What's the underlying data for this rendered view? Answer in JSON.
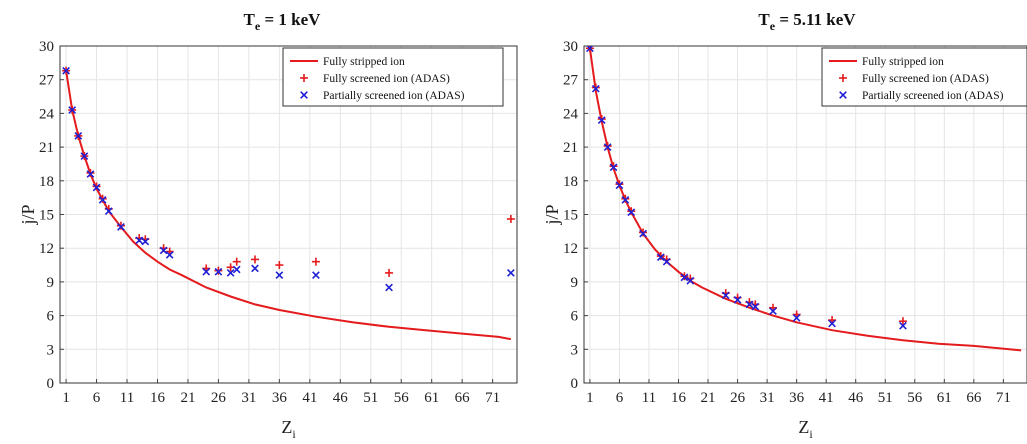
{
  "chart_data": [
    {
      "type": "scatter",
      "title": {
        "main": "T",
        "sub": "e",
        "rest": " = 1 keV"
      },
      "xlabel": {
        "main": "Z",
        "sub": "i"
      },
      "ylabel": "j/P",
      "xlim": [
        0,
        75
      ],
      "ylim": [
        0,
        30
      ],
      "xticks": [
        1,
        6,
        11,
        16,
        21,
        26,
        31,
        36,
        41,
        46,
        51,
        56,
        61,
        66,
        71
      ],
      "yticks": [
        0,
        3,
        6,
        9,
        12,
        15,
        18,
        21,
        24,
        27,
        30
      ],
      "grid": true,
      "legend_position": "top-right",
      "series": [
        {
          "name": "Fully stripped ion",
          "style": "line",
          "color": "#e41a1c",
          "x": [
            1,
            2,
            3,
            4,
            5,
            6,
            7,
            8,
            10,
            12,
            14,
            16,
            18,
            20,
            24,
            28,
            32,
            36,
            42,
            48,
            54,
            60,
            66,
            72,
            74
          ],
          "y": [
            27.8,
            24.3,
            22.0,
            20.2,
            18.6,
            17.3,
            16.3,
            15.3,
            13.9,
            12.6,
            11.6,
            10.8,
            10.1,
            9.6,
            8.5,
            7.7,
            7.0,
            6.5,
            5.9,
            5.4,
            5.0,
            4.7,
            4.4,
            4.1,
            3.9
          ]
        },
        {
          "name": "Fully screened ion (ADAS)",
          "style": "marker",
          "marker": "plus",
          "color": "#e41a1c",
          "x": [
            1,
            2,
            3,
            4,
            5,
            6,
            7,
            8,
            10,
            13,
            14,
            17,
            18,
            24,
            26,
            28,
            29,
            32,
            36,
            42,
            54,
            74
          ],
          "y": [
            27.8,
            24.3,
            22.0,
            20.2,
            18.7,
            17.5,
            16.4,
            15.5,
            14.0,
            12.9,
            12.8,
            12.0,
            11.7,
            10.2,
            10.0,
            10.3,
            10.8,
            11.0,
            10.5,
            10.8,
            9.8,
            14.6
          ]
        },
        {
          "name": "Partially screened ion (ADAS)",
          "style": "marker",
          "marker": "cross",
          "color": "#1f1fd6",
          "x": [
            1,
            2,
            3,
            4,
            5,
            6,
            7,
            8,
            10,
            13,
            14,
            17,
            18,
            24,
            26,
            28,
            29,
            32,
            36,
            42,
            54,
            74
          ],
          "y": [
            27.8,
            24.3,
            22.0,
            20.2,
            18.6,
            17.4,
            16.3,
            15.3,
            13.9,
            12.7,
            12.6,
            11.8,
            11.4,
            9.9,
            9.9,
            9.8,
            10.1,
            10.2,
            9.6,
            9.6,
            8.5,
            9.8
          ]
        }
      ]
    },
    {
      "type": "scatter",
      "title": {
        "main": "T",
        "sub": "e",
        "rest": " = 5.11 keV"
      },
      "xlabel": {
        "main": "Z",
        "sub": "i"
      },
      "ylabel": "j/P",
      "xlim": [
        0,
        75
      ],
      "ylim": [
        0,
        30
      ],
      "xticks": [
        1,
        6,
        11,
        16,
        21,
        26,
        31,
        36,
        41,
        46,
        51,
        56,
        61,
        66,
        71
      ],
      "yticks": [
        0,
        3,
        6,
        9,
        12,
        15,
        18,
        21,
        24,
        27,
        30
      ],
      "grid": true,
      "legend_position": "top-right",
      "series": [
        {
          "name": "Fully stripped ion",
          "style": "line",
          "color": "#e41a1c",
          "x": [
            1,
            2,
            3,
            4,
            5,
            6,
            7,
            8,
            10,
            12,
            14,
            16,
            18,
            20,
            24,
            28,
            32,
            36,
            42,
            48,
            54,
            60,
            66,
            72,
            74
          ],
          "y": [
            29.8,
            26.0,
            23.3,
            21.0,
            19.1,
            17.6,
            16.3,
            15.2,
            13.3,
            11.9,
            10.8,
            9.9,
            9.1,
            8.5,
            7.5,
            6.7,
            6.0,
            5.4,
            4.7,
            4.2,
            3.8,
            3.5,
            3.3,
            3.0,
            2.9
          ]
        },
        {
          "name": "Fully screened ion (ADAS)",
          "style": "marker",
          "marker": "plus",
          "color": "#e41a1c",
          "x": [
            1,
            2,
            3,
            4,
            5,
            6,
            7,
            8,
            10,
            13,
            14,
            17,
            18,
            24,
            26,
            28,
            29,
            32,
            36,
            42,
            54
          ],
          "y": [
            29.8,
            26.3,
            23.5,
            21.1,
            19.3,
            17.7,
            16.4,
            15.3,
            13.4,
            11.3,
            11.0,
            9.5,
            9.3,
            8.0,
            7.6,
            7.2,
            7.0,
            6.7,
            6.1,
            5.6,
            5.5
          ]
        },
        {
          "name": "Partially screened ion (ADAS)",
          "style": "marker",
          "marker": "cross",
          "color": "#1f1fd6",
          "x": [
            1,
            2,
            3,
            4,
            5,
            6,
            7,
            8,
            10,
            13,
            14,
            17,
            18,
            24,
            26,
            28,
            29,
            32,
            36,
            42,
            54
          ],
          "y": [
            29.8,
            26.2,
            23.4,
            21.0,
            19.2,
            17.6,
            16.3,
            15.2,
            13.3,
            11.2,
            10.8,
            9.4,
            9.1,
            7.8,
            7.4,
            7.0,
            6.8,
            6.4,
            5.8,
            5.3,
            5.1
          ]
        }
      ]
    }
  ]
}
